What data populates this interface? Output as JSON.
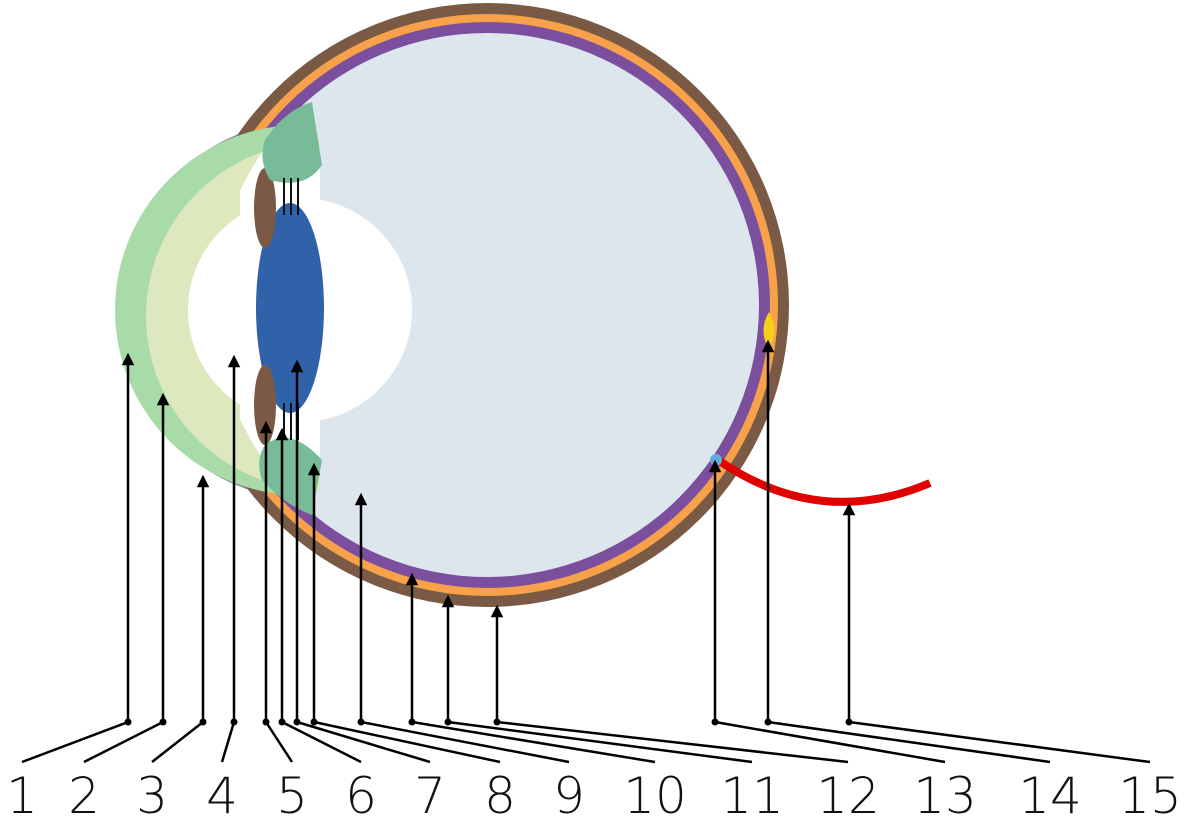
{
  "labels": [
    "1",
    "2",
    "3",
    "4",
    "5",
    "6",
    "7",
    "8",
    "9",
    "10",
    "11",
    "12",
    "13",
    "14",
    "15"
  ]
}
